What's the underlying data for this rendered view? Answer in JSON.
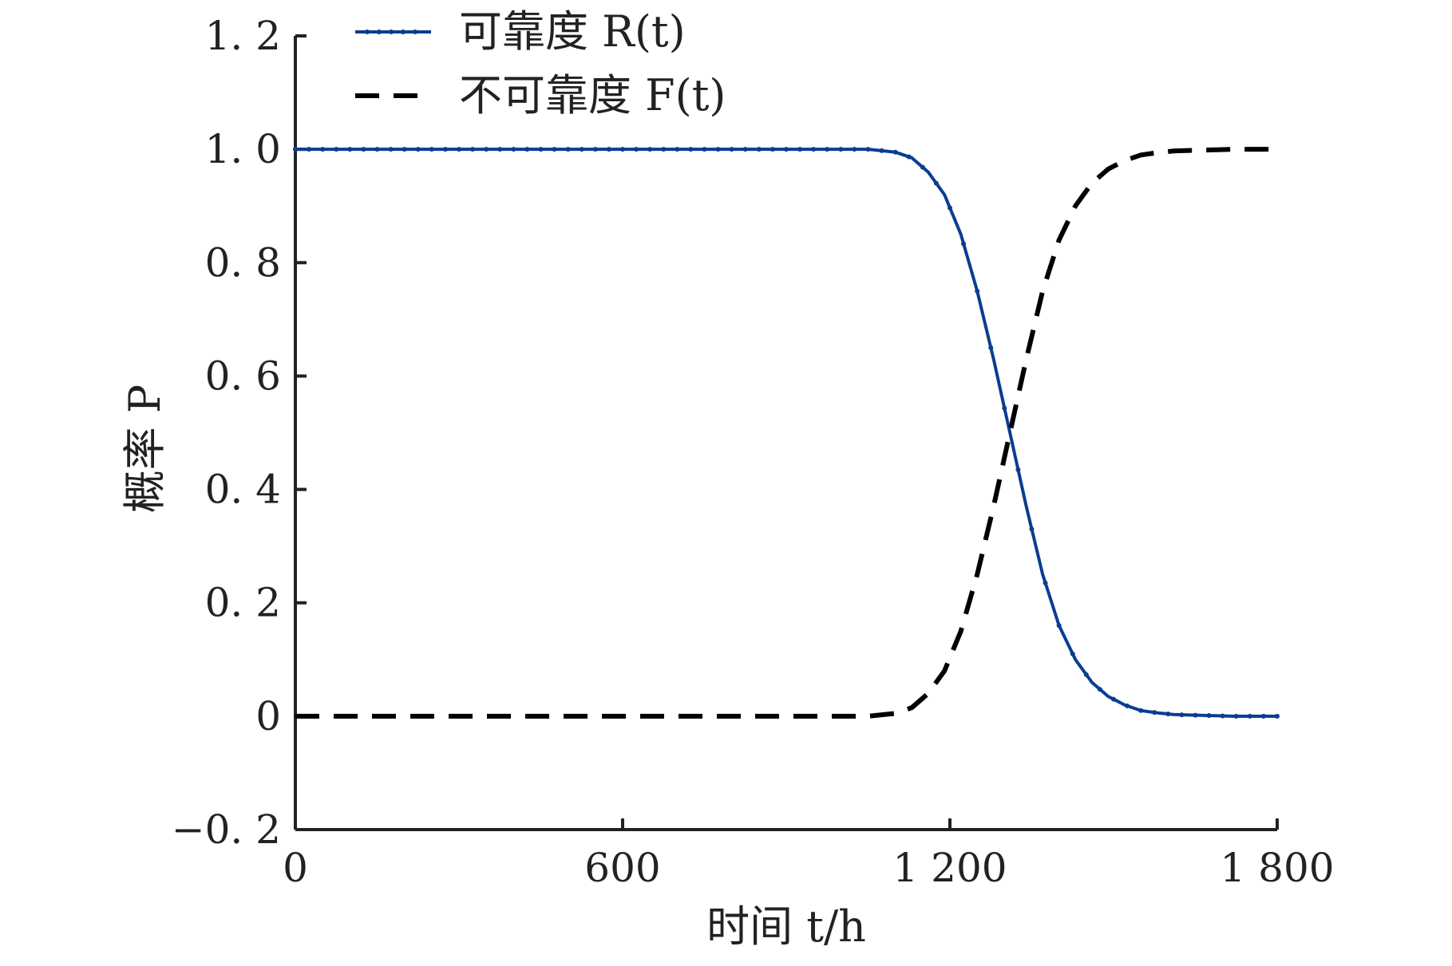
{
  "chart_data": {
    "type": "line",
    "xlabel": "时间 t/h",
    "ylabel": "概率 P",
    "xlim": [
      0,
      1800
    ],
    "ylim": [
      -0.2,
      1.2
    ],
    "x_ticks": [
      {
        "value": 0,
        "label": "0"
      },
      {
        "value": 600,
        "label": "600"
      },
      {
        "value": 1200,
        "label": "1 200"
      },
      {
        "value": 1800,
        "label": "1 800"
      }
    ],
    "y_ticks": [
      {
        "value": -0.2,
        "label": "−0. 2"
      },
      {
        "value": 0,
        "label": "0"
      },
      {
        "value": 0.2,
        "label": "0. 2"
      },
      {
        "value": 0.4,
        "label": "0. 4"
      },
      {
        "value": 0.6,
        "label": "0. 6"
      },
      {
        "value": 0.8,
        "label": "0. 8"
      },
      {
        "value": 1.0,
        "label": "1. 0"
      },
      {
        "value": 1.2,
        "label": "1. 2"
      }
    ],
    "legend_position": "top-left",
    "grid": false,
    "x": [
      0,
      300,
      600,
      900,
      1000,
      1050,
      1100,
      1130,
      1160,
      1190,
      1220,
      1250,
      1280,
      1310,
      1340,
      1370,
      1400,
      1430,
      1460,
      1490,
      1520,
      1550,
      1580,
      1610,
      1640,
      1680,
      1720,
      1760,
      1800
    ],
    "series": [
      {
        "name": "可靠度 R(t)",
        "color": "#0a3d91",
        "style": "solid-dotted",
        "values": [
          1.0,
          1.0,
          1.0,
          1.0,
          1.0,
          1.0,
          0.995,
          0.985,
          0.96,
          0.92,
          0.85,
          0.75,
          0.63,
          0.5,
          0.37,
          0.25,
          0.16,
          0.1,
          0.06,
          0.035,
          0.02,
          0.01,
          0.006,
          0.003,
          0.002,
          0.001,
          0.0,
          0.0,
          0.0
        ]
      },
      {
        "name": "不可靠度 F(t)",
        "color": "#000000",
        "style": "dashed",
        "values": [
          0.0,
          0.0,
          0.0,
          0.0,
          0.0,
          0.0,
          0.005,
          0.015,
          0.04,
          0.08,
          0.15,
          0.25,
          0.37,
          0.5,
          0.63,
          0.75,
          0.84,
          0.9,
          0.94,
          0.965,
          0.98,
          0.99,
          0.994,
          0.997,
          0.998,
          0.999,
          1.0,
          1.0,
          1.0
        ]
      }
    ]
  }
}
